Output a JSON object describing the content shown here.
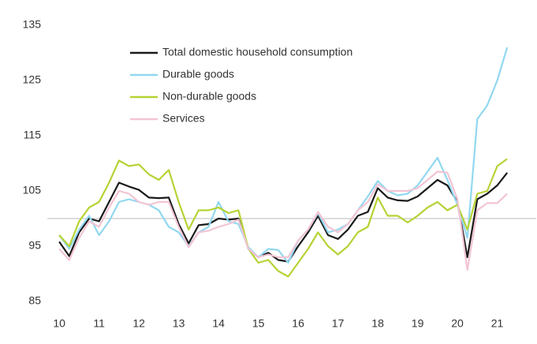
{
  "chart_data": {
    "type": "line",
    "x": [
      10,
      10.25,
      10.5,
      10.75,
      11,
      11.25,
      11.5,
      11.75,
      12,
      12.25,
      12.5,
      12.75,
      13,
      13.25,
      13.5,
      13.75,
      14,
      14.25,
      14.5,
      14.75,
      15,
      15.25,
      15.5,
      15.75,
      16,
      16.25,
      16.5,
      16.75,
      17,
      17.25,
      17.5,
      17.75,
      18,
      18.25,
      18.5,
      18.75,
      19,
      19.25,
      19.5,
      19.75,
      20,
      20.25,
      20.5,
      20.75,
      21,
      21.25
    ],
    "series": [
      {
        "name": "Total domestic household consumption",
        "color": "#1a1a1a",
        "values": [
          95.8,
          93.2,
          97.5,
          100,
          99.5,
          103,
          106.5,
          105.8,
          105.2,
          103.8,
          103.7,
          103.8,
          99,
          95.5,
          98.8,
          99,
          100,
          99.8,
          100,
          94.5,
          93,
          93.8,
          92.5,
          92.2,
          95,
          97.5,
          100.5,
          97,
          96.3,
          98,
          100.5,
          101.2,
          105.5,
          103.8,
          103.3,
          103.2,
          104,
          105.5,
          107,
          106,
          103,
          93,
          103.5,
          104.5,
          106,
          108.3
        ]
      },
      {
        "name": "Durable goods",
        "color": "#92d8f0",
        "values": [
          97,
          94.5,
          98,
          100.5,
          97,
          99.5,
          103,
          103.5,
          103,
          102.5,
          101.5,
          98.5,
          97.5,
          95,
          97.5,
          98.5,
          103,
          99.5,
          99,
          94.8,
          93,
          94.5,
          94.3,
          92,
          96,
          98,
          101,
          97.5,
          98,
          99,
          101.5,
          104,
          106.8,
          105,
          104.2,
          104.5,
          106,
          108.5,
          111,
          107,
          102.5,
          96.5,
          118,
          120.5,
          125,
          131
        ]
      },
      {
        "name": "Non-durable goods",
        "color": "#b5d335",
        "values": [
          97,
          95,
          99.5,
          102,
          103,
          106.5,
          110.5,
          109.5,
          109.8,
          108,
          107,
          108.8,
          103,
          98,
          101.5,
          101.5,
          102,
          101,
          101.5,
          94.5,
          92,
          92.5,
          90.5,
          89.5,
          92,
          94.5,
          97.5,
          95,
          93.5,
          95,
          97.5,
          98.5,
          103.8,
          100.5,
          100.5,
          99.3,
          100.5,
          102,
          103,
          101.5,
          102.5,
          98,
          104.5,
          105,
          109.5,
          110.8
        ]
      },
      {
        "name": "Services",
        "color": "#f2c4d4",
        "values": [
          94.5,
          92.5,
          96.5,
          99.5,
          98.5,
          102,
          105,
          104.5,
          103,
          102.5,
          103,
          103,
          98.5,
          94.8,
          97.5,
          97.8,
          98.5,
          99,
          99.8,
          94.5,
          93,
          93.5,
          93,
          93,
          96,
          98,
          101.2,
          98.5,
          97.5,
          99,
          101.5,
          103,
          106.2,
          105,
          105,
          105,
          105.5,
          107,
          108.5,
          108.3,
          103.5,
          90.7,
          101.5,
          102.8,
          102.8,
          104.5
        ]
      }
    ],
    "xlim": [
      9.7,
      21.9
    ],
    "xticks": [
      10,
      11,
      12,
      13,
      14,
      15,
      16,
      17,
      18,
      19,
      20,
      21
    ],
    "ylim": [
      85,
      135
    ],
    "yticks": [
      85,
      95,
      105,
      115,
      125,
      135
    ],
    "reference_line": 100,
    "legend": "top-left"
  }
}
